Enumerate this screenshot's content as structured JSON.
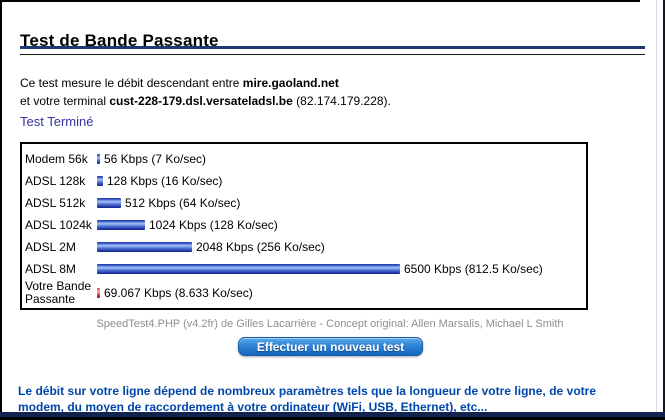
{
  "page": {
    "title": "Test de Bande Passante",
    "intro": {
      "line1_prefix": "Ce test mesure le débit descendant entre ",
      "server_host": "mire.gaoland.net",
      "line2_prefix": "et votre terminal ",
      "terminal_host": "cust-228-179.dsl.versateladsl.be",
      "line2_suffix": " (82.174.179.228)."
    },
    "status_text": "Test Terminé",
    "caption": "SpeedTest4.PHP (v4.2fr) de Gilles Lacarrière - Concept original: Allen Marsalis, Michael L Smith",
    "button_label": "Effectuer un nouveau test",
    "footer_note": "Le débit sur votre ligne dépend de nombreux paramètres tels que la longueur de votre ligne, de votre modem, du moyen de raccordement à votre ordinateur (WiFi, USB, Ethernet), etc..."
  },
  "chart_data": {
    "type": "bar",
    "orientation": "horizontal",
    "title": "",
    "xlabel": "",
    "ylabel": "",
    "unit": "Kbps",
    "grid": false,
    "legend": false,
    "xlim": [
      0,
      6650
    ],
    "categories": [
      "Modem 56k",
      "ADSL 128k",
      "ADSL 512k",
      "ADSL 1024k",
      "ADSL 2M",
      "ADSL 8M",
      "Votre Bande Passante"
    ],
    "values": [
      56,
      128,
      512,
      1024,
      2048,
      6500,
      69.067
    ],
    "data_labels": [
      "56 Kbps (7 Ko/sec)",
      "128 Kbps (16 Ko/sec)",
      "512 Kbps (64 Ko/sec)",
      "1024 Kbps (128 Ko/sec)",
      "2048 Kbps (256 Ko/sec)",
      "6500 Kbps (812.5 Ko/sec)",
      "69.067 Kbps (8.633 Ko/sec)"
    ],
    "colors": [
      "blue",
      "blue",
      "blue",
      "blue",
      "blue",
      "blue",
      "red"
    ],
    "bar_blue_hex": "#2743ae",
    "bar_red_hex": "#d03030"
  },
  "colors": {
    "title_rule_navy": "#1e3a72",
    "status_blue": "#3333a2",
    "footer_blue": "#0047ab",
    "caption_gray": "#8f8f8f",
    "button_blue": "#1565c0",
    "bottom_strip_navy": "#13234f"
  }
}
